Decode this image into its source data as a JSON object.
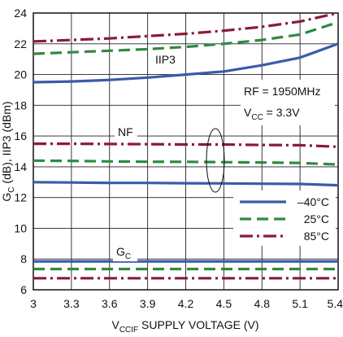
{
  "chart_data": {
    "type": "line",
    "xlabel_main": "V",
    "xlabel_sub": "CCIF",
    "xlabel_rest": " SUPPLY VOLTAGE (V)",
    "ylabel_g": "G",
    "ylabel_g_sub": "C",
    "ylabel_rest": " (dB), IIP3 (dBm)",
    "xlim": [
      3,
      5.4
    ],
    "ylim": [
      6,
      24
    ],
    "x_ticks": [
      "3",
      "3.3",
      "3.6",
      "3.9",
      "4.2",
      "4.5",
      "4.8",
      "5.1",
      "5.4"
    ],
    "y_ticks": [
      "6",
      "8",
      "10",
      "12",
      "14",
      "16",
      "18",
      "20",
      "22",
      "24"
    ],
    "grid": true,
    "legend_position": "bottom-right",
    "legend": [
      {
        "label": "–40°C",
        "color": "#3a5ba8",
        "dash": "solid"
      },
      {
        "label": "25°C",
        "color": "#2e8b3e",
        "dash": "dashed"
      },
      {
        "label": "85°C",
        "color": "#8b1a3a",
        "dash": "dashdot"
      }
    ],
    "annotations": {
      "iip3": "IIP3",
      "nf": "NF",
      "gc_main": "G",
      "gc_sub": "C",
      "rf": "RF = 1950MHz",
      "vcc_main": "V",
      "vcc_sub": "CC",
      "vcc_rest": " = 3.3V"
    },
    "x": [
      3.0,
      3.3,
      3.6,
      3.9,
      4.2,
      4.5,
      4.8,
      5.1,
      5.4
    ],
    "series": [
      {
        "group": "IIP3",
        "temp": "-40°C",
        "color": "#3a5ba8",
        "dash": "solid",
        "values": [
          19.5,
          19.55,
          19.65,
          19.8,
          20.0,
          20.2,
          20.6,
          21.1,
          22.0
        ]
      },
      {
        "group": "IIP3",
        "temp": "25°C",
        "color": "#2e8b3e",
        "dash": "dashed",
        "values": [
          21.35,
          21.45,
          21.55,
          21.65,
          21.8,
          22.0,
          22.25,
          22.6,
          23.4
        ]
      },
      {
        "group": "IIP3",
        "temp": "85°C",
        "color": "#8b1a3a",
        "dash": "dashdot",
        "values": [
          22.15,
          22.25,
          22.35,
          22.5,
          22.65,
          22.85,
          23.1,
          23.45,
          24.0
        ]
      },
      {
        "group": "NF",
        "temp": "-40°C",
        "color": "#3a5ba8",
        "dash": "solid",
        "values": [
          13.0,
          12.98,
          12.95,
          12.95,
          12.93,
          12.92,
          12.9,
          12.88,
          12.8
        ]
      },
      {
        "group": "NF",
        "temp": "25°C",
        "color": "#2e8b3e",
        "dash": "dashed",
        "values": [
          14.4,
          14.38,
          14.35,
          14.33,
          14.32,
          14.3,
          14.28,
          14.25,
          14.15
        ]
      },
      {
        "group": "NF",
        "temp": "85°C",
        "color": "#8b1a3a",
        "dash": "dashdot",
        "values": [
          15.5,
          15.5,
          15.48,
          15.47,
          15.45,
          15.45,
          15.42,
          15.4,
          15.3
        ]
      },
      {
        "group": "GC",
        "temp": "-40°C",
        "color": "#3a5ba8",
        "dash": "solid",
        "values": [
          7.85,
          7.85,
          7.85,
          7.85,
          7.85,
          7.85,
          7.85,
          7.85,
          7.85
        ]
      },
      {
        "group": "GC",
        "temp": "25°C",
        "color": "#2e8b3e",
        "dash": "dashed",
        "values": [
          7.35,
          7.35,
          7.35,
          7.35,
          7.35,
          7.35,
          7.35,
          7.35,
          7.35
        ]
      },
      {
        "group": "GC",
        "temp": "85°C",
        "color": "#8b1a3a",
        "dash": "dashdot",
        "values": [
          6.75,
          6.75,
          6.75,
          6.75,
          6.75,
          6.75,
          6.75,
          6.75,
          6.75
        ]
      }
    ]
  }
}
